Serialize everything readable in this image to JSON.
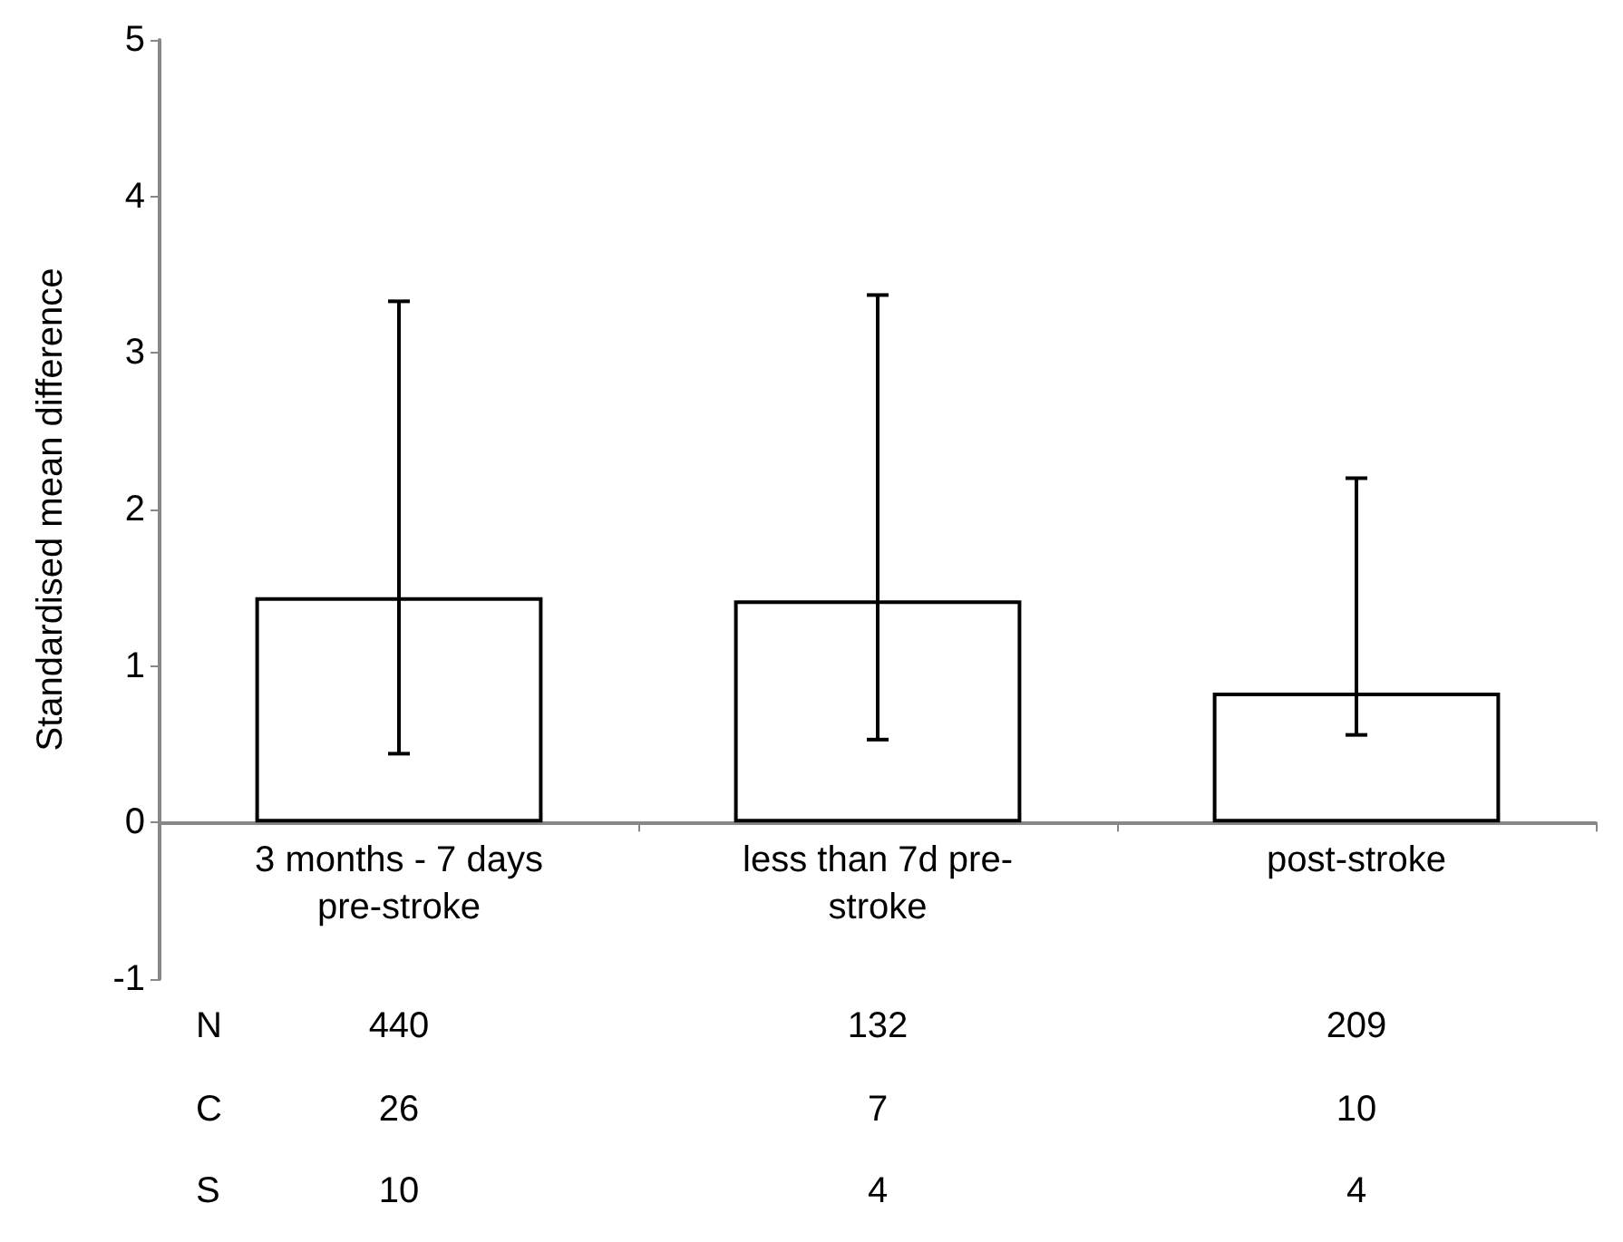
{
  "chart_data": {
    "type": "bar",
    "ylabel": "Standardised mean difference",
    "categories": [
      "3 months - 7 days\npre-stroke",
      "less than 7d pre-\nstroke",
      "post-stroke"
    ],
    "values": [
      1.44,
      1.42,
      0.83
    ],
    "errors": [
      [
        0.44,
        3.33
      ],
      [
        0.53,
        3.37
      ],
      [
        0.56,
        2.2
      ]
    ],
    "color": "#ffffff",
    "ylim": [
      -1,
      5
    ],
    "yticks": [
      -1,
      0,
      1,
      2,
      3,
      4,
      5
    ],
    "grid": false,
    "annotations": [
      "N",
      "C",
      "S",
      "440",
      "26",
      "10",
      "132",
      "7",
      "4",
      "209",
      "10",
      "4"
    ]
  }
}
